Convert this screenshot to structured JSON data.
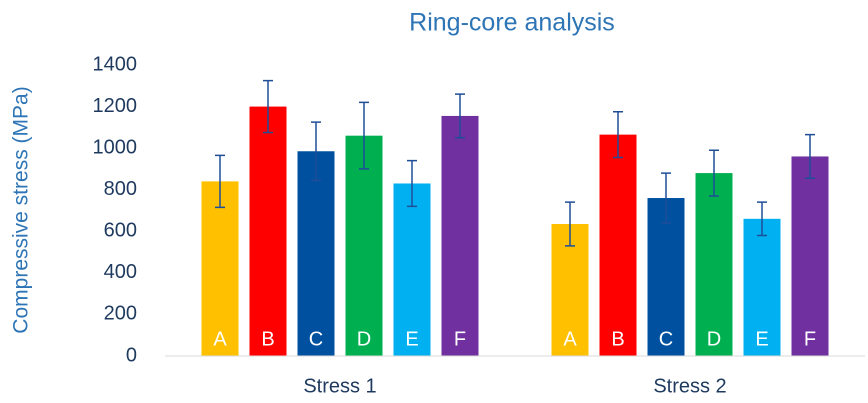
{
  "chart_data": {
    "type": "bar",
    "title": "Ring-core analysis",
    "ylabel": "Compressive stress (MPa)",
    "categories": [
      "Stress 1",
      "Stress 2"
    ],
    "series": [
      {
        "name": "A",
        "color": "#ffc000",
        "values": [
          840,
          635
        ],
        "errors": [
          125,
          105
        ]
      },
      {
        "name": "B",
        "color": "#ff0000",
        "values": [
          1200,
          1065
        ],
        "errors": [
          125,
          110
        ]
      },
      {
        "name": "C",
        "color": "#0050a0",
        "values": [
          985,
          760
        ],
        "errors": [
          140,
          120
        ]
      },
      {
        "name": "D",
        "color": "#00b050",
        "values": [
          1060,
          880
        ],
        "errors": [
          160,
          110
        ]
      },
      {
        "name": "E",
        "color": "#00b0f0",
        "values": [
          830,
          660
        ],
        "errors": [
          110,
          80
        ]
      },
      {
        "name": "F",
        "color": "#7030a0",
        "values": [
          1155,
          960
        ],
        "errors": [
          105,
          105
        ]
      }
    ],
    "ylim": [
      0,
      1400
    ],
    "yticks": [
      0,
      200,
      400,
      600,
      800,
      1000,
      1200,
      1400
    ],
    "grid": false
  }
}
